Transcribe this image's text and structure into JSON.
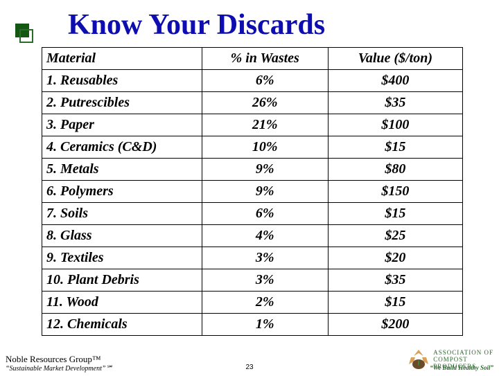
{
  "title": "Know Your Discards",
  "title_color": "#0e0eb0",
  "table": {
    "columns": [
      "Material",
      "% in Wastes",
      "Value ($/ton)"
    ],
    "rows": [
      [
        "1. Reusables",
        "6%",
        "$400"
      ],
      [
        "2. Putrescibles",
        "26%",
        "$35"
      ],
      [
        "3. Paper",
        "21%",
        "$100"
      ],
      [
        "4. Ceramics (C&D)",
        "10%",
        "$15"
      ],
      [
        "5. Metals",
        "9%",
        "$80"
      ],
      [
        "6. Polymers",
        "9%",
        "$150"
      ],
      [
        "7. Soils",
        "6%",
        "$15"
      ],
      [
        "8. Glass",
        "4%",
        "$25"
      ],
      [
        "9. Textiles",
        "3%",
        "$20"
      ],
      [
        "10. Plant Debris",
        "3%",
        "$35"
      ],
      [
        "11. Wood",
        "2%",
        "$15"
      ],
      [
        "12. Chemicals",
        "1%",
        "$200"
      ]
    ]
  },
  "footer": {
    "org_name": "Noble Resources Group™",
    "org_tagline": "“Sustainable Market Development”℠",
    "page_number": "23",
    "assoc_line1": "ASSOCIATION OF",
    "assoc_line2": "COMPOST",
    "assoc_line3": "PRODUCERS",
    "assoc_tagline": "“We Build Healthy Soil”"
  },
  "colors": {
    "title": "#0e0eb0",
    "bullet_dark": "#135713",
    "bullet_border": "#2a6b2a",
    "assoc_text": "#2b6a2b",
    "border": "#000000",
    "background": "#ffffff"
  }
}
